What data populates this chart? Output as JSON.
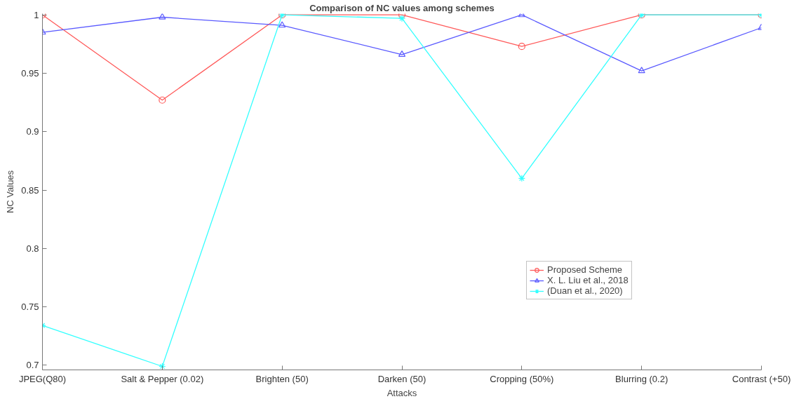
{
  "chart_data": {
    "type": "line",
    "title": "Comparison of NC values among schemes",
    "xlabel": "Attacks",
    "ylabel": "NC Values",
    "categories": [
      "JPEG(Q80)",
      "Salt & Pepper (0.02)",
      "Brighten (50)",
      "Darken (50)",
      "Cropping (50%)",
      "Blurring (0.2)",
      "Contrast (+50)"
    ],
    "series": [
      {
        "name": "Proposed Scheme",
        "color": "#ff5a5a",
        "marker": "circle",
        "values": [
          1,
          0.927,
          1,
          1,
          0.973,
          1,
          1
        ]
      },
      {
        "name": "X. L. Liu et al., 2018",
        "color": "#5a5aff",
        "marker": "triangle",
        "values": [
          0.985,
          0.998,
          0.991,
          0.966,
          1,
          0.952,
          0.989
        ]
      },
      {
        "name": "(Duan et al., 2020)",
        "color": "#33ffff",
        "marker": "cross",
        "values": [
          0.734,
          0.699,
          1,
          0.997,
          0.86,
          1,
          1
        ]
      }
    ],
    "ylim": [
      0.696,
      1.001
    ],
    "yticks": [
      0.7,
      0.75,
      0.8,
      0.85,
      0.9,
      0.95,
      1
    ],
    "grid": false,
    "legend": "right",
    "line_style": "solid"
  }
}
